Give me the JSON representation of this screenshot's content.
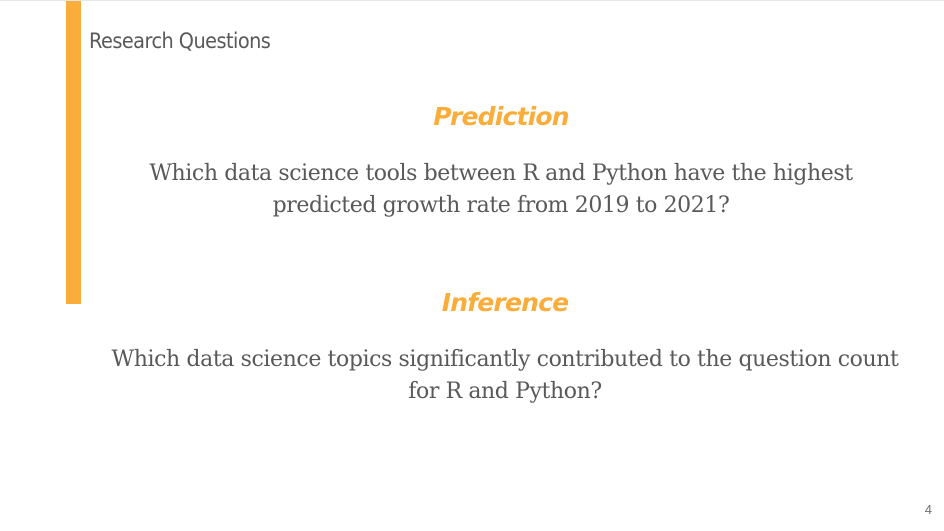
{
  "colors": {
    "accent": "#fbad3c",
    "title": "#595959",
    "body": "#595959",
    "page_number": "#707070"
  },
  "slide": {
    "title": "Research Questions",
    "sections": [
      {
        "heading": "Prediction",
        "text": "Which data science tools between R and Python have the highest predicted growth rate from 2019 to 2021?"
      },
      {
        "heading": "Inference",
        "text": "Which data science topics significantly contributed to the question count for R and Python?"
      }
    ],
    "page_number": "4"
  }
}
